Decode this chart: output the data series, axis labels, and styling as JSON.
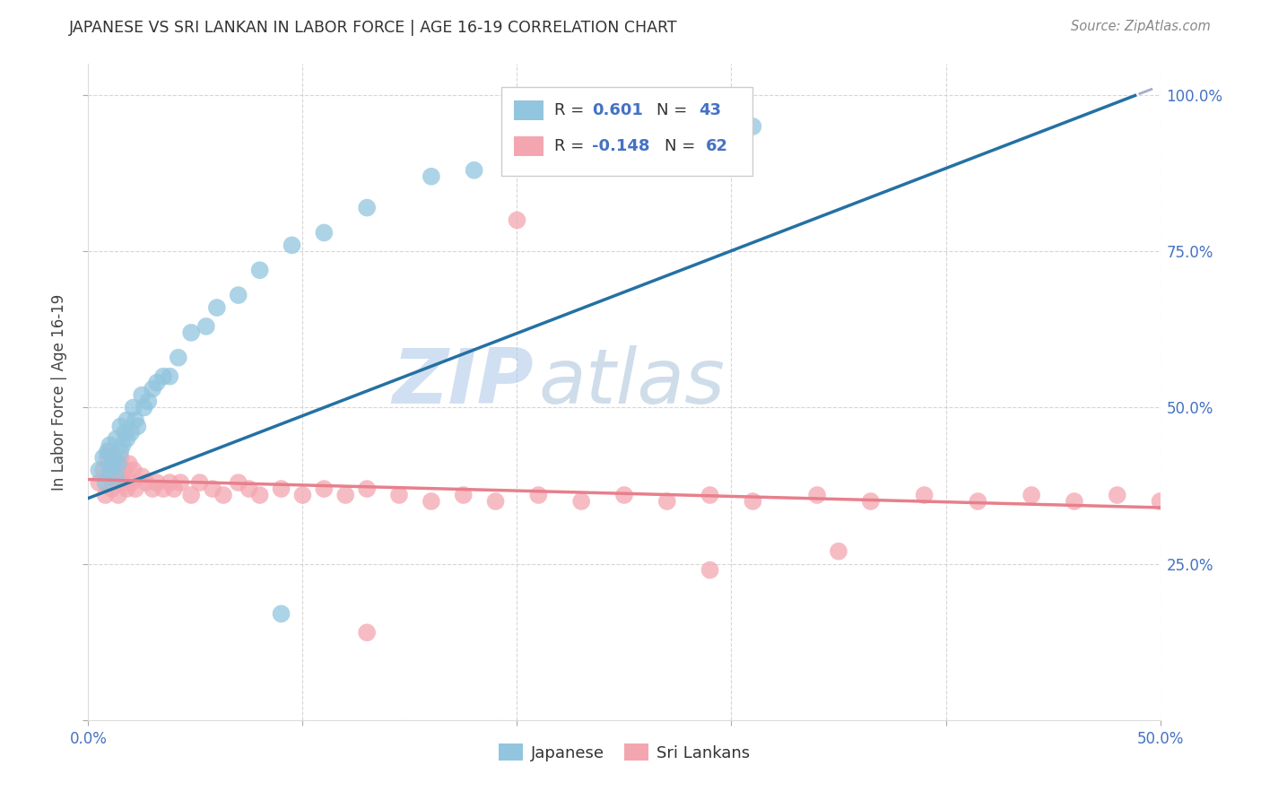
{
  "title": "JAPANESE VS SRI LANKAN IN LABOR FORCE | AGE 16-19 CORRELATION CHART",
  "source": "Source: ZipAtlas.com",
  "ylabel": "In Labor Force | Age 16-19",
  "xlim": [
    0.0,
    0.5
  ],
  "ylim": [
    0.0,
    1.05
  ],
  "xticks": [
    0.0,
    0.1,
    0.2,
    0.3,
    0.4,
    0.5
  ],
  "xticklabels": [
    "0.0%",
    "",
    "",
    "",
    "",
    "50.0%"
  ],
  "yticks": [
    0.0,
    0.25,
    0.5,
    0.75,
    1.0
  ],
  "yticklabels": [
    "",
    "25.0%",
    "50.0%",
    "75.0%",
    "100.0%"
  ],
  "legend_r_japanese": "0.601",
  "legend_n_japanese": "43",
  "legend_r_srilankan": "-0.148",
  "legend_n_srilankan": "62",
  "japanese_color": "#92c5de",
  "srilankan_color": "#f4a6b0",
  "japanese_line_color": "#2471a3",
  "srilankan_line_color": "#e87f8c",
  "japanese_x": [
    0.005,
    0.007,
    0.008,
    0.009,
    0.01,
    0.01,
    0.011,
    0.012,
    0.013,
    0.013,
    0.014,
    0.015,
    0.015,
    0.016,
    0.017,
    0.018,
    0.018,
    0.02,
    0.021,
    0.022,
    0.023,
    0.025,
    0.026,
    0.028,
    0.03,
    0.032,
    0.035,
    0.038,
    0.042,
    0.048,
    0.055,
    0.06,
    0.07,
    0.08,
    0.095,
    0.11,
    0.13,
    0.16,
    0.18,
    0.2,
    0.23,
    0.09,
    0.31
  ],
  "japanese_y": [
    0.4,
    0.42,
    0.38,
    0.43,
    0.4,
    0.44,
    0.41,
    0.42,
    0.39,
    0.45,
    0.41,
    0.43,
    0.47,
    0.44,
    0.46,
    0.45,
    0.48,
    0.46,
    0.5,
    0.48,
    0.47,
    0.52,
    0.5,
    0.51,
    0.53,
    0.54,
    0.55,
    0.55,
    0.58,
    0.62,
    0.63,
    0.66,
    0.68,
    0.72,
    0.76,
    0.78,
    0.82,
    0.87,
    0.88,
    0.9,
    0.95,
    0.17,
    0.95
  ],
  "srilankan_x": [
    0.005,
    0.007,
    0.008,
    0.009,
    0.01,
    0.01,
    0.011,
    0.012,
    0.013,
    0.013,
    0.014,
    0.015,
    0.015,
    0.016,
    0.017,
    0.018,
    0.019,
    0.02,
    0.021,
    0.022,
    0.025,
    0.027,
    0.03,
    0.032,
    0.035,
    0.038,
    0.04,
    0.043,
    0.048,
    0.052,
    0.058,
    0.063,
    0.07,
    0.075,
    0.08,
    0.09,
    0.1,
    0.11,
    0.12,
    0.13,
    0.145,
    0.16,
    0.175,
    0.19,
    0.21,
    0.23,
    0.25,
    0.27,
    0.29,
    0.31,
    0.34,
    0.365,
    0.39,
    0.415,
    0.44,
    0.46,
    0.48,
    0.5,
    0.13,
    0.2,
    0.29,
    0.35
  ],
  "srilankan_y": [
    0.38,
    0.4,
    0.36,
    0.42,
    0.39,
    0.43,
    0.37,
    0.41,
    0.38,
    0.4,
    0.36,
    0.39,
    0.42,
    0.38,
    0.4,
    0.37,
    0.41,
    0.38,
    0.4,
    0.37,
    0.39,
    0.38,
    0.37,
    0.38,
    0.37,
    0.38,
    0.37,
    0.38,
    0.36,
    0.38,
    0.37,
    0.36,
    0.38,
    0.37,
    0.36,
    0.37,
    0.36,
    0.37,
    0.36,
    0.37,
    0.36,
    0.35,
    0.36,
    0.35,
    0.36,
    0.35,
    0.36,
    0.35,
    0.36,
    0.35,
    0.36,
    0.35,
    0.36,
    0.35,
    0.36,
    0.35,
    0.36,
    0.35,
    0.14,
    0.8,
    0.24,
    0.27
  ]
}
